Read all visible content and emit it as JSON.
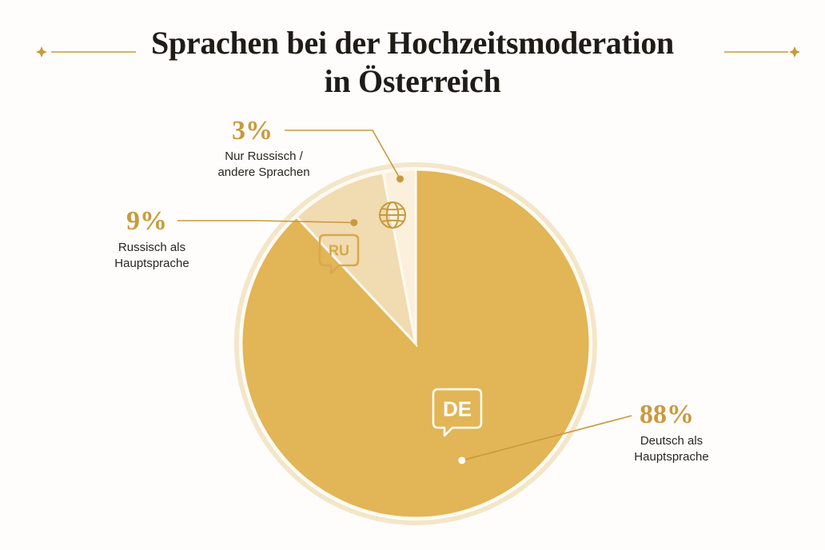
{
  "title_line1": "Sprachen bei der Hochzeitsmoderation",
  "title_line2": "in Österreich",
  "chart_data": {
    "type": "pie",
    "slices": [
      {
        "label_line1": "Deutsch als",
        "label_line2": "Hauptsprache",
        "value": 88,
        "value_text": "88%",
        "badge": "DE",
        "color": "#e2b556"
      },
      {
        "label_line1": "Russisch als",
        "label_line2": "Hauptsprache",
        "value": 9,
        "value_text": "9%",
        "badge": "RU",
        "color": "#f1dbb0"
      },
      {
        "label_line1": "Nur Russisch /",
        "label_line2": "andere Sprachen",
        "value": 3,
        "value_text": "3%",
        "badge": "globe-icon",
        "color": "#fbf0dc"
      }
    ],
    "colors": {
      "accent": "#c99a3c",
      "outline": "#f3e3c3"
    }
  }
}
